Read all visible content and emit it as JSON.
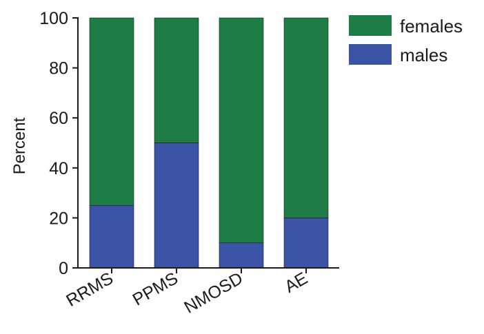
{
  "chart_data": {
    "type": "bar",
    "stacked": true,
    "categories": [
      "RRMS",
      "PPMS",
      "NMOSD",
      "AE"
    ],
    "series": [
      {
        "name": "males",
        "values": [
          25,
          50,
          10,
          20
        ],
        "color": "#3a53a4"
      },
      {
        "name": "females",
        "values": [
          75,
          50,
          90,
          80
        ],
        "color": "#1e7d45"
      }
    ],
    "legend_order": [
      "females",
      "males"
    ],
    "ylabel": "Percent",
    "ylim": [
      0,
      100
    ],
    "yticks": [
      0,
      20,
      40,
      60,
      80,
      100
    ],
    "grid": false,
    "legend_position": "top-right"
  }
}
